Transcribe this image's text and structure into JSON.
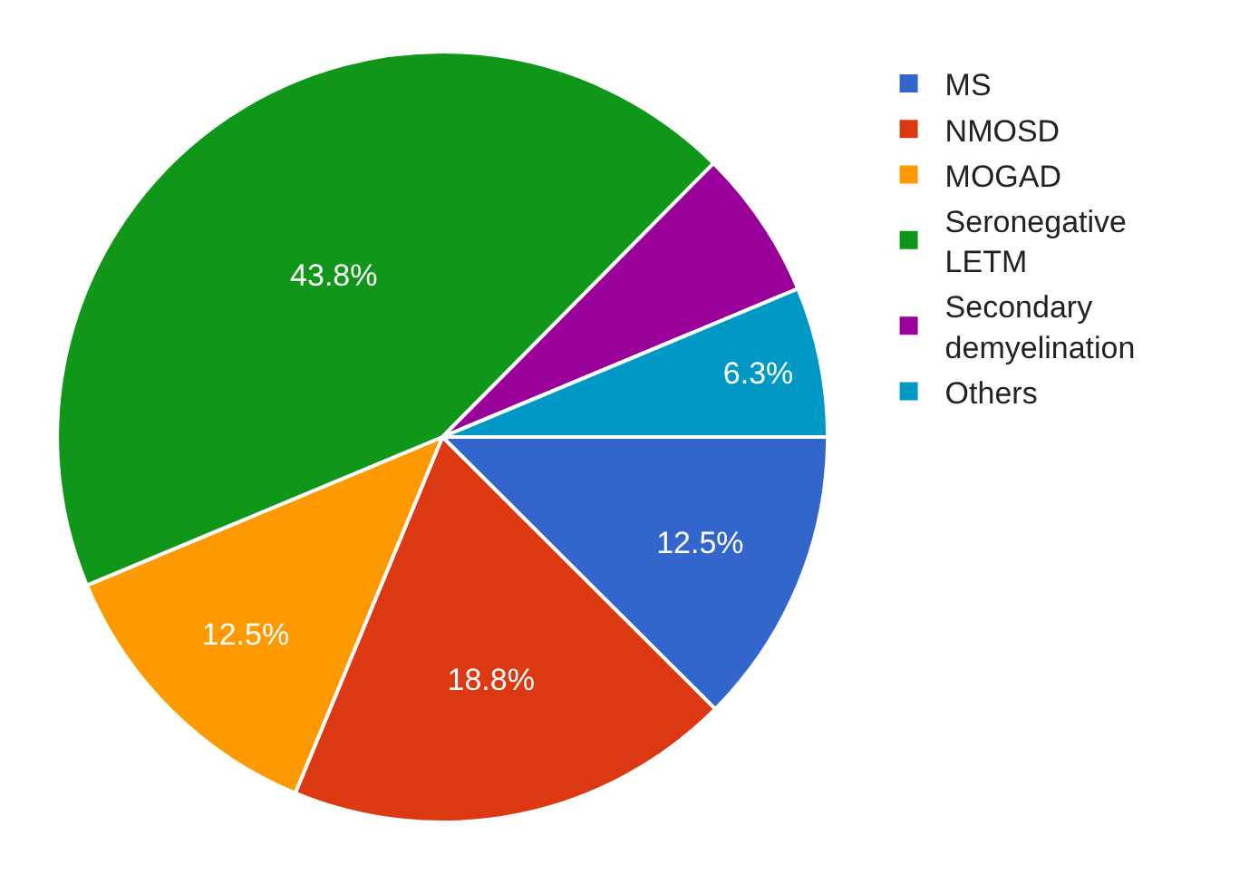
{
  "chart_data": {
    "type": "pie",
    "categories": [
      "MS",
      "NMOSD",
      "MOGAD",
      "Seronegative LETM",
      "Secondary demyelination",
      "Others"
    ],
    "values": [
      12.5,
      18.8,
      12.5,
      43.8,
      6.3,
      6.3
    ],
    "colors": [
      "#3366cc",
      "#dc3912",
      "#ff9900",
      "#109618",
      "#990099",
      "#0099c6"
    ],
    "value_labels": [
      "12.5%",
      "18.8%",
      "12.5%",
      "43.8%",
      null,
      "6.3%"
    ],
    "legend": "right"
  }
}
